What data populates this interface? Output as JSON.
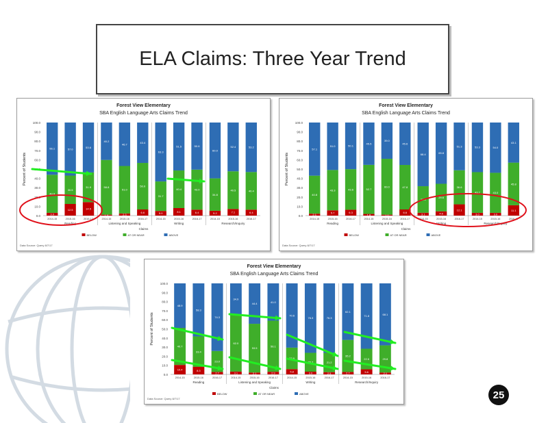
{
  "slide": {
    "title": "ELA Claims: Three Year Trend",
    "page_number": "25"
  },
  "colors": {
    "below": "#c00000",
    "at_near": "#3fae2a",
    "above": "#2e6db4",
    "red_circle": "#e0101a",
    "green_arrow": "#22ee22"
  },
  "chart_data": [
    {
      "type": "bar",
      "stacked": true,
      "school": "Forest View Elementary",
      "title": "SBA English Language Arts Claims Trend",
      "ylabel": "Percent of Students",
      "xlabel": "Claims",
      "source": "Data Source: Query 8/7/17",
      "ylim": [
        0,
        100
      ],
      "yticks": [
        "0.0",
        "10.0",
        "20.0",
        "30.0",
        "40.0",
        "50.0",
        "60.0",
        "70.0",
        "80.0",
        "90.0",
        "100.0"
      ],
      "groups": [
        "Reading",
        "Listening and Speaking",
        "Writing",
        "Research/Inquiry"
      ],
      "categories": [
        "2014-15",
        "2015-16",
        "2016-17",
        "2014-15",
        "2015-16",
        "2016-17",
        "2014-15",
        "2015-16",
        "2016-17",
        "2014-15",
        "2015-16",
        "2016-17"
      ],
      "series": [
        {
          "name": "BELOW",
          "values": [
            3.0,
            12.5,
            14.5,
            1.0,
            2.3,
            6.6,
            5.0,
            8.1,
            6.4,
            5.2,
            7.1,
            6.4
          ]
        },
        {
          "name": "AT OR NEAR",
          "values": [
            40.9,
            30.5,
            31.9,
            58.8,
            51.0,
            50.0,
            31.7,
            40.4,
            43.0,
            34.8,
            40.5,
            40.4
          ]
        },
        {
          "name": "ABOVE",
          "values": [
            56.1,
            57.0,
            53.6,
            40.2,
            46.7,
            43.4,
            63.3,
            51.5,
            50.6,
            60.0,
            52.4,
            53.2
          ]
        }
      ],
      "annotations": [
        "red circle around Reading BELOW",
        "green arrows over Reading and Writing"
      ]
    },
    {
      "type": "bar",
      "stacked": true,
      "school": "Forest View Elementary",
      "title": "SBA English Language Arts Claims Trend",
      "ylabel": "Percent of Students",
      "xlabel": "Claims",
      "source": "Data Source: Query 8/7/17",
      "ylim": [
        0,
        100
      ],
      "yticks": [
        "0.0",
        "10.0",
        "20.0",
        "30.0",
        "40.0",
        "50.0",
        "60.0",
        "70.0",
        "80.0",
        "90.0",
        "100.0"
      ],
      "groups": [
        "Reading",
        "Listening and Speaking",
        "Writing",
        "Research/Inquiry"
      ],
      "categories": [
        "2014-15",
        "2015-16",
        "2016-17",
        "2014-15",
        "2015-16",
        "2016-17",
        "2014-15",
        "2015-16",
        "2016-17",
        "2014-15",
        "2015-16",
        "2016-17"
      ],
      "series": [
        {
          "name": "BELOW",
          "values": [
            2.1,
            5.7,
            6.3,
            1.8,
            1.0,
            6.6,
            3.1,
            4.6,
            12.1,
            3.0,
            3.0,
            11.1
          ]
        },
        {
          "name": "AT OR NEAR",
          "values": [
            40.8,
            43.3,
            43.6,
            52.7,
            60.0,
            47.8,
            28.5,
            29.6,
            36.6,
            43.7,
            43.0,
            45.8
          ]
        },
        {
          "name": "ABOVE",
          "values": [
            57.1,
            51.0,
            50.1,
            45.5,
            39.0,
            45.6,
            68.4,
            65.8,
            51.3,
            53.3,
            54.0,
            43.1
          ]
        }
      ],
      "annotations": [
        "red circle around Writing and Research/Inquiry BELOW"
      ]
    },
    {
      "type": "bar",
      "stacked": true,
      "school": "Forest View Elementary",
      "title": "SBA English Language Arts Claims Trend",
      "ylabel": "Percent of Students",
      "xlabel": "Claims",
      "source": "Data Source: Query 8/7/17",
      "ylim": [
        0,
        100
      ],
      "yticks": [
        "0.0",
        "10.0",
        "20.0",
        "30.0",
        "40.0",
        "50.0",
        "60.0",
        "70.0",
        "80.0",
        "90.0",
        "100.0"
      ],
      "groups": [
        "Reading",
        "Listening and Speaking",
        "Writing",
        "Research/Inquiry"
      ],
      "categories": [
        "2014-15",
        "2015-16",
        "2016-17",
        "2014-15",
        "2015-16",
        "2016-17",
        "2014-15",
        "2015-16",
        "2016-17",
        "2014-15",
        "2015-16",
        "2016-17"
      ],
      "series": [
        {
          "name": "BELOW",
          "values": [
            10.4,
            8.3,
            2.7,
            3.1,
            2.1,
            2.9,
            5.8,
            3.0,
            2.5,
            2.7,
            5.6,
            2.1
          ]
        },
        {
          "name": "AT OR NEAR",
          "values": [
            40.7,
            33.4,
            23.0,
            62.0,
            53.5,
            56.1,
            23.6,
            20.7,
            21.2,
            35.2,
            22.6,
            29.8
          ]
        },
        {
          "name": "ABOVE",
          "values": [
            48.9,
            58.3,
            74.3,
            34.9,
            44.4,
            41.0,
            70.6,
            76.3,
            76.3,
            62.1,
            71.8,
            68.1
          ]
        }
      ],
      "annotations": [
        "green arrows pointing to 2016-17 across all claims"
      ]
    }
  ]
}
